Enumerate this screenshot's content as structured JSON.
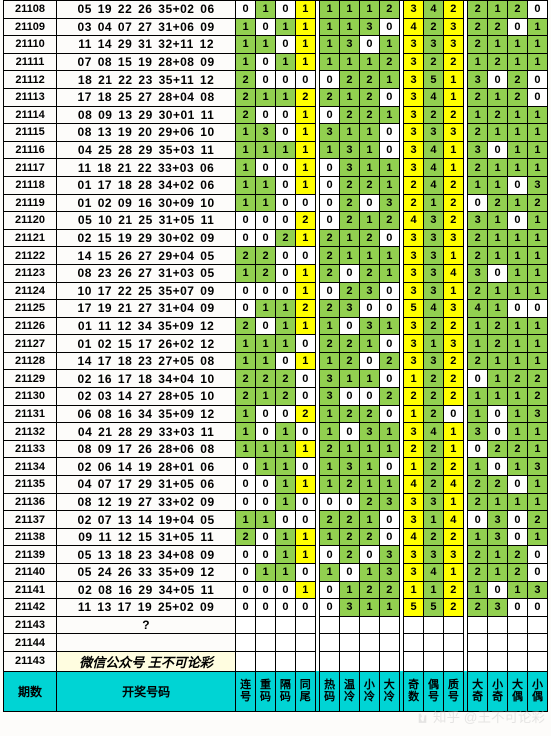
{
  "colors": {
    "yellow": "#ffff00",
    "green": "#92d050",
    "white": "#ffffff",
    "header_bg": "#00d4d4",
    "wechat_bg": "#fffde0",
    "border": "#000000"
  },
  "col_widths": {
    "issue": 48,
    "nums": 162,
    "gap": 4,
    "attr": 18
  },
  "header": {
    "issue": "期数",
    "nums": "开奖号码",
    "stats": [
      "连号",
      "重码",
      "隔码",
      "同尾",
      "热码",
      "温冷",
      "小冷",
      "大冷",
      "奇数",
      "偶号",
      "质号",
      "大奇",
      "小奇",
      "大偶",
      "小偶"
    ]
  },
  "stat_groups": [
    [
      0,
      1,
      2,
      3
    ],
    [
      4,
      5,
      6,
      7
    ],
    [
      8,
      9,
      10
    ],
    [
      11,
      12,
      13,
      14
    ]
  ],
  "yellow_cols": [
    3,
    8,
    10
  ],
  "rows": [
    {
      "issue": "21108",
      "nums": "05 19 22 26 35+02 06",
      "v": [
        0,
        1,
        0,
        1,
        1,
        1,
        1,
        2,
        3,
        4,
        2,
        2,
        1,
        2,
        0
      ]
    },
    {
      "issue": "21109",
      "nums": "03 04 07 27 31+06 09",
      "v": [
        1,
        0,
        1,
        1,
        1,
        1,
        3,
        0,
        4,
        2,
        3,
        2,
        2,
        0,
        1
      ]
    },
    {
      "issue": "21110",
      "nums": "11 14 29 31 32+11 12",
      "v": [
        1,
        1,
        0,
        1,
        1,
        3,
        0,
        1,
        3,
        3,
        3,
        2,
        1,
        1,
        1
      ]
    },
    {
      "issue": "21111",
      "nums": "07 08 15 19 28+08 09",
      "v": [
        1,
        0,
        1,
        1,
        1,
        1,
        1,
        2,
        3,
        2,
        2,
        1,
        2,
        1,
        1
      ]
    },
    {
      "issue": "21112",
      "nums": "18 21 22 23 35+11 12",
      "v": [
        2,
        0,
        0,
        0,
        0,
        2,
        2,
        1,
        3,
        5,
        1,
        3,
        0,
        2,
        0
      ]
    },
    {
      "issue": "21113",
      "nums": "17 18 25 27 28+04 08",
      "v": [
        2,
        1,
        1,
        2,
        2,
        1,
        2,
        0,
        3,
        4,
        1,
        2,
        1,
        2,
        0
      ]
    },
    {
      "issue": "21114",
      "nums": "08 09 13 29 30+01 11",
      "v": [
        2,
        0,
        0,
        1,
        0,
        2,
        2,
        1,
        3,
        2,
        2,
        1,
        2,
        1,
        1
      ]
    },
    {
      "issue": "21115",
      "nums": "08 13 19 20 29+06 10",
      "v": [
        1,
        3,
        0,
        1,
        3,
        1,
        1,
        0,
        3,
        3,
        3,
        2,
        1,
        1,
        1
      ]
    },
    {
      "issue": "21116",
      "nums": "04 25 28 29 35+03 11",
      "v": [
        1,
        1,
        1,
        1,
        1,
        3,
        1,
        0,
        3,
        4,
        1,
        3,
        0,
        1,
        1
      ]
    },
    {
      "issue": "21117",
      "nums": "11 18 21 22 33+03 06",
      "v": [
        1,
        0,
        0,
        1,
        0,
        3,
        1,
        1,
        3,
        4,
        1,
        2,
        1,
        1,
        1
      ]
    },
    {
      "issue": "21118",
      "nums": "01 17 18 28 34+02 06",
      "v": [
        1,
        1,
        0,
        1,
        0,
        2,
        2,
        1,
        2,
        4,
        2,
        1,
        1,
        0,
        3
      ]
    },
    {
      "issue": "21119",
      "nums": "01 02 09 16 30+09 10",
      "v": [
        1,
        1,
        0,
        0,
        0,
        2,
        0,
        3,
        2,
        1,
        2,
        0,
        2,
        1,
        2
      ]
    },
    {
      "issue": "21120",
      "nums": "05 10 21 25 31+05 11",
      "v": [
        0,
        0,
        0,
        2,
        0,
        2,
        1,
        2,
        4,
        3,
        2,
        3,
        1,
        0,
        1
      ]
    },
    {
      "issue": "21121",
      "nums": "02 15 19 29 30+02 09",
      "v": [
        0,
        0,
        2,
        1,
        2,
        1,
        2,
        0,
        3,
        3,
        3,
        2,
        1,
        1,
        1
      ]
    },
    {
      "issue": "21122",
      "nums": "14 15 26 27 29+04 05",
      "v": [
        2,
        2,
        0,
        0,
        2,
        1,
        1,
        1,
        3,
        3,
        1,
        2,
        1,
        1,
        1
      ]
    },
    {
      "issue": "21123",
      "nums": "08 23 26 27 31+03 05",
      "v": [
        1,
        2,
        0,
        1,
        2,
        0,
        2,
        1,
        3,
        3,
        4,
        3,
        0,
        1,
        1
      ]
    },
    {
      "issue": "21124",
      "nums": "10 17 22 25 35+07 09",
      "v": [
        0,
        0,
        0,
        1,
        0,
        2,
        3,
        0,
        3,
        3,
        1,
        2,
        1,
        1,
        1
      ]
    },
    {
      "issue": "21125",
      "nums": "17 19 21 27 31+04 09",
      "v": [
        0,
        1,
        1,
        2,
        2,
        3,
        0,
        0,
        5,
        4,
        3,
        4,
        1,
        0,
        0
      ]
    },
    {
      "issue": "21126",
      "nums": "01 11 12 34 35+09 12",
      "v": [
        2,
        0,
        1,
        1,
        1,
        0,
        3,
        1,
        3,
        2,
        2,
        1,
        2,
        1,
        1
      ]
    },
    {
      "issue": "21127",
      "nums": "01 02 15 17 26+02 12",
      "v": [
        1,
        1,
        1,
        0,
        2,
        2,
        1,
        0,
        3,
        1,
        3,
        1,
        2,
        1,
        1
      ]
    },
    {
      "issue": "21128",
      "nums": "14 17 18 23 27+05 08",
      "v": [
        1,
        1,
        0,
        1,
        1,
        2,
        0,
        2,
        3,
        3,
        2,
        2,
        1,
        1,
        1
      ]
    },
    {
      "issue": "21129",
      "nums": "02 16 17 18 34+04 10",
      "v": [
        2,
        2,
        2,
        0,
        3,
        1,
        1,
        0,
        1,
        2,
        2,
        0,
        1,
        2,
        2
      ]
    },
    {
      "issue": "21130",
      "nums": "02 03 14 27 28+05 10",
      "v": [
        2,
        1,
        2,
        0,
        3,
        0,
        0,
        2,
        2,
        2,
        2,
        1,
        1,
        1,
        2
      ]
    },
    {
      "issue": "21131",
      "nums": "06 08 16 34 35+09 12",
      "v": [
        1,
        0,
        0,
        2,
        1,
        2,
        2,
        0,
        1,
        2,
        0,
        1,
        0,
        1,
        3
      ]
    },
    {
      "issue": "21132",
      "nums": "04 21 28 29 33+03 11",
      "v": [
        1,
        0,
        1,
        0,
        1,
        0,
        3,
        1,
        3,
        4,
        1,
        3,
        0,
        1,
        1
      ]
    },
    {
      "issue": "21133",
      "nums": "08 09 17 26 28+06 08",
      "v": [
        1,
        1,
        1,
        1,
        2,
        1,
        1,
        1,
        2,
        2,
        1,
        0,
        2,
        2,
        1
      ]
    },
    {
      "issue": "21134",
      "nums": "02 06 14 19 28+01 06",
      "v": [
        0,
        1,
        1,
        0,
        1,
        3,
        1,
        0,
        1,
        2,
        2,
        1,
        0,
        1,
        3
      ]
    },
    {
      "issue": "21135",
      "nums": "04 07 17 29 31+05 06",
      "v": [
        0,
        0,
        1,
        1,
        1,
        2,
        1,
        1,
        4,
        2,
        4,
        2,
        2,
        0,
        1
      ]
    },
    {
      "issue": "21136",
      "nums": "08 12 19 27 33+02 09",
      "v": [
        0,
        0,
        1,
        0,
        0,
        0,
        2,
        3,
        3,
        3,
        1,
        2,
        1,
        1,
        1
      ]
    },
    {
      "issue": "21137",
      "nums": "02 07 13 14 19+04 05",
      "v": [
        1,
        1,
        0,
        0,
        2,
        2,
        1,
        0,
        3,
        1,
        4,
        0,
        3,
        0,
        2
      ]
    },
    {
      "issue": "21138",
      "nums": "09 11 12 15 31+05 11",
      "v": [
        2,
        0,
        1,
        1,
        1,
        2,
        2,
        0,
        4,
        2,
        2,
        1,
        3,
        0,
        1
      ]
    },
    {
      "issue": "21139",
      "nums": "05 13 18 23 34+08 09",
      "v": [
        0,
        0,
        1,
        1,
        0,
        2,
        0,
        3,
        3,
        3,
        3,
        2,
        1,
        2,
        0
      ]
    },
    {
      "issue": "21140",
      "nums": "05 24 26 33 35+09 12",
      "v": [
        0,
        1,
        1,
        0,
        1,
        0,
        1,
        3,
        3,
        4,
        1,
        2,
        1,
        2,
        0
      ]
    },
    {
      "issue": "21141",
      "nums": "02 08 16 29 34+05 11",
      "v": [
        0,
        0,
        0,
        1,
        0,
        1,
        2,
        2,
        1,
        1,
        2,
        1,
        0,
        1,
        3
      ]
    },
    {
      "issue": "21142",
      "nums": "11 13 17 19 25+02 09",
      "v": [
        0,
        0,
        0,
        0,
        0,
        3,
        1,
        1,
        5,
        5,
        2,
        2,
        3,
        0,
        0
      ]
    }
  ],
  "empty_rows": [
    "21143",
    "21144"
  ],
  "wechat": {
    "issue": "21143",
    "text": "微信公众号  王不可论彩"
  },
  "watermark": "知乎 @王不可论彩"
}
